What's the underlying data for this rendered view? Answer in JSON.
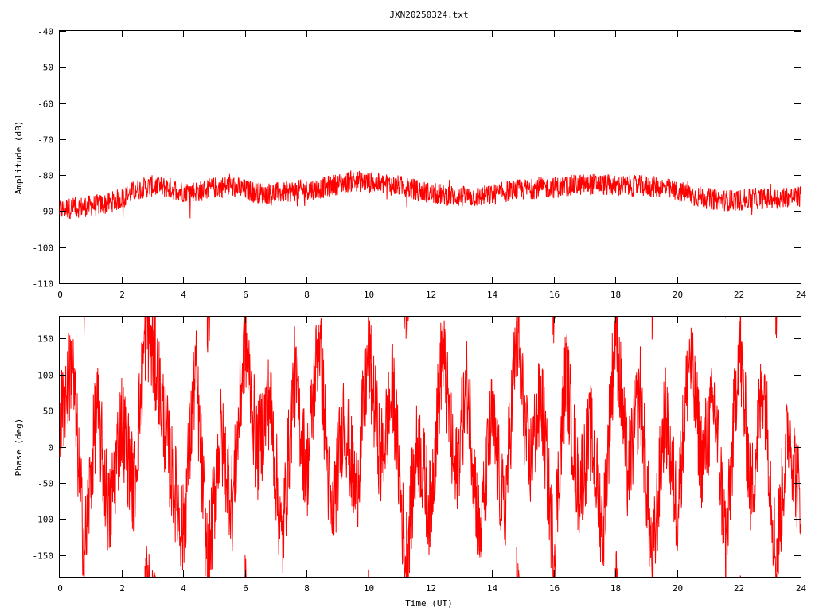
{
  "title": "JXN20250324.txt",
  "colors": {
    "trace": "#ff0000",
    "axis": "#000000",
    "background": "#ffffff"
  },
  "chart_data": [
    {
      "type": "line",
      "title": "JXN20250324.txt",
      "xlabel": "",
      "ylabel": "Amplitude (dB)",
      "xlim": [
        0,
        24
      ],
      "ylim": [
        -110,
        -40
      ],
      "xticks": [
        "0",
        "2",
        "4",
        "6",
        "8",
        "10",
        "12",
        "14",
        "16",
        "18",
        "20",
        "22",
        "24"
      ],
      "yticks": [
        "-40",
        "-50",
        "-60",
        "-70",
        "-80",
        "-90",
        "-100",
        "-110"
      ],
      "grid": false,
      "series": [
        {
          "color": "#ff0000",
          "x": [
            0,
            0.5,
            1,
            1.5,
            2,
            2.5,
            3,
            3.5,
            4,
            4.5,
            5,
            5.5,
            6,
            6.5,
            7,
            7.5,
            8,
            8.5,
            9,
            9.5,
            10,
            10.5,
            11,
            11.5,
            12,
            12.5,
            13,
            13.5,
            14,
            14.5,
            15,
            15.5,
            16,
            16.5,
            17,
            17.5,
            18,
            18.5,
            19,
            19.5,
            20,
            20.5,
            21,
            21.5,
            22,
            22.5,
            23,
            23.5,
            24
          ],
          "values": [
            -89.5,
            -89,
            -88.5,
            -88,
            -86.5,
            -84,
            -83,
            -83.5,
            -84.5,
            -84.5,
            -83.5,
            -83,
            -84,
            -85,
            -85,
            -84.5,
            -84,
            -83.5,
            -82.5,
            -81.5,
            -82,
            -82.5,
            -83,
            -84,
            -85,
            -85.5,
            -86,
            -86,
            -85.5,
            -84.5,
            -84,
            -83.5,
            -83.5,
            -83,
            -82.5,
            -82.5,
            -83,
            -83,
            -83,
            -83.5,
            -84.5,
            -85.5,
            -86.5,
            -87,
            -87,
            -86.5,
            -86.5,
            -86,
            -86
          ],
          "spread": 3
        }
      ]
    },
    {
      "type": "line",
      "title": "",
      "xlabel": "Time (UT)",
      "ylabel": "Phase (deg)",
      "xlim": [
        0,
        24
      ],
      "ylim": [
        -180,
        180
      ],
      "xticks": [
        "0",
        "2",
        "4",
        "6",
        "8",
        "10",
        "12",
        "14",
        "16",
        "18",
        "20",
        "22",
        "24"
      ],
      "yticks": [
        "150",
        "100",
        "50",
        "0",
        "-50",
        "-100",
        "-150"
      ],
      "grid": false,
      "series": [
        {
          "color": "#ff0000",
          "note_range": "wraps between -180 and 180 degrees",
          "x": [
            0,
            0.4,
            0.8,
            1.2,
            1.6,
            2,
            2.4,
            2.8,
            3.2,
            3.6,
            4,
            4.4,
            4.8,
            5.2,
            5.6,
            6,
            6.4,
            6.8,
            7.2,
            7.6,
            8,
            8.4,
            8.8,
            9.2,
            9.6,
            10,
            10.4,
            10.8,
            11.2,
            11.6,
            12,
            12.4,
            12.8,
            13.2,
            13.6,
            14,
            14.4,
            14.8,
            15.2,
            15.6,
            16,
            16.4,
            16.8,
            17.2,
            17.6,
            18,
            18.4,
            18.8,
            19.2,
            19.6,
            20,
            20.4,
            20.8,
            21.2,
            21.6,
            22,
            22.4,
            22.8,
            23.2,
            23.6,
            24
          ],
          "values": [
            30,
            120,
            -150,
            60,
            -100,
            40,
            -60,
            170,
            90,
            -30,
            -120,
            110,
            -170,
            20,
            -80,
            150,
            -10,
            70,
            -140,
            100,
            -40,
            160,
            -110,
            50,
            -70,
            130,
            -20,
            80,
            -160,
            10,
            -90,
            140,
            -50,
            90,
            -130,
            40,
            -100,
            160,
            -30,
            70,
            -150,
            110,
            -60,
            20,
            -120,
            170,
            -40,
            80,
            -170,
            50,
            -90,
            130,
            -20,
            60,
            -140,
            150,
            -70,
            100,
            -160,
            30,
            -80
          ]
        }
      ]
    }
  ]
}
